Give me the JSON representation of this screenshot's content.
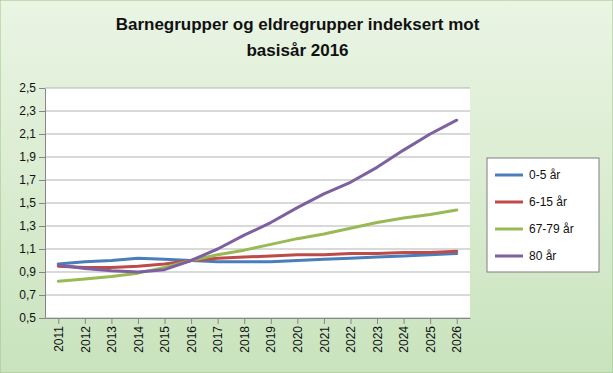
{
  "chart_data": {
    "type": "line",
    "title": "Barnegrupper og eldregrupper indeksert mot basisår 2016",
    "categories": [
      "2011",
      "2012",
      "2013",
      "2014",
      "2015",
      "2016",
      "2017",
      "2018",
      "2019",
      "2020",
      "2021",
      "2022",
      "2023",
      "2024",
      "2025",
      "2026"
    ],
    "series": [
      {
        "name": "0-5 år",
        "color": "#4a7ebb",
        "values": [
          0.97,
          0.99,
          1.0,
          1.02,
          1.01,
          1.0,
          0.99,
          0.99,
          0.99,
          1.0,
          1.01,
          1.02,
          1.03,
          1.04,
          1.05,
          1.06
        ]
      },
      {
        "name": "6-15 år",
        "color": "#be4b48",
        "values": [
          0.95,
          0.94,
          0.94,
          0.95,
          0.97,
          1.0,
          1.02,
          1.03,
          1.04,
          1.05,
          1.05,
          1.06,
          1.06,
          1.07,
          1.07,
          1.08
        ]
      },
      {
        "name": "67-79 år",
        "color": "#98b954",
        "values": [
          0.82,
          0.84,
          0.86,
          0.89,
          0.94,
          1.0,
          1.05,
          1.09,
          1.14,
          1.19,
          1.23,
          1.28,
          1.33,
          1.37,
          1.4,
          1.44
        ]
      },
      {
        "name": "80 år",
        "color": "#7d60a0",
        "values": [
          0.96,
          0.93,
          0.91,
          0.9,
          0.92,
          1.0,
          1.1,
          1.22,
          1.33,
          1.46,
          1.58,
          1.68,
          1.81,
          1.96,
          2.1,
          2.22
        ]
      }
    ],
    "ylim": [
      0.5,
      2.5
    ],
    "yticks": [
      {
        "value": 0.5,
        "label": "0,5"
      },
      {
        "value": 0.7,
        "label": "0,7"
      },
      {
        "value": 0.9,
        "label": "0,9"
      },
      {
        "value": 1.1,
        "label": "1,1"
      },
      {
        "value": 1.3,
        "label": "1,3"
      },
      {
        "value": 1.5,
        "label": "1,5"
      },
      {
        "value": 1.7,
        "label": "1,7"
      },
      {
        "value": 1.9,
        "label": "1,9"
      },
      {
        "value": 2.1,
        "label": "2,1"
      },
      {
        "value": 2.3,
        "label": "2,3"
      },
      {
        "value": 2.5,
        "label": "2,5"
      }
    ],
    "grid": true,
    "legend": "right"
  }
}
